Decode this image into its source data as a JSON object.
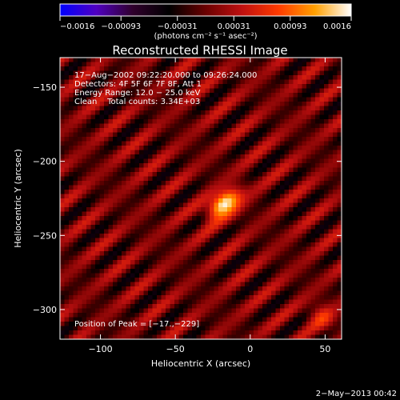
{
  "chart_data": {
    "type": "heatmap",
    "title": "Reconstructed RHESSI Image",
    "xlabel": "Heliocentric X (arcsec)",
    "ylabel": "Heliocentric Y (arcsec)",
    "xlim": [
      -127,
      61
    ],
    "ylim": [
      -320,
      -130
    ],
    "x_ticks": [
      -100,
      -50,
      0,
      50
    ],
    "x_tick_labels": [
      "−100",
      "−50",
      "0",
      "50"
    ],
    "y_ticks": [
      -150,
      -200,
      -250,
      -300
    ],
    "y_tick_labels": [
      "−150",
      "−200",
      "−250",
      "−300"
    ],
    "colorbar": {
      "range": [
        -0.0016,
        0.0016
      ],
      "ticks": [
        -0.0016,
        -0.00093,
        -0.00031,
        0.00031,
        0.00093,
        0.0016
      ],
      "tick_labels": [
        "−0.0016",
        "−0.00093",
        "−0.00031",
        "0.00031",
        "0.00093",
        "0.0016"
      ],
      "unit_label": "(photons cm⁻² s⁻¹ asec⁻²)",
      "colors": [
        "#0000ff",
        "#5000c0",
        "#30002c",
        "#000000",
        "#6a0000",
        "#c01010",
        "#ff3a00",
        "#ffa000",
        "#ffffff"
      ]
    },
    "info_lines": [
      "17−Aug−2002 09:22:20.000 to 09:26:24.000",
      "Detectors: 4F 5F 6F 7F 8F, Att 1",
      "Energy Range: 12.0 − 25.0 keV",
      "Clean    Total counts: 3.34E+03"
    ],
    "peak_label": "Position of Peak = [−17.,−229]",
    "peak": {
      "x": -17,
      "y": -229
    },
    "pattern": {
      "stripe_direction_deg": 40,
      "stripe_period_arcsec": 19,
      "stripe_amplitude": 0.00048,
      "source_peak": 0.00155,
      "source_sigma_major": 9,
      "source_sigma_minor": 5.5,
      "source_angle_deg": 40,
      "secondary_sources": [
        {
          "x": 48,
          "y": -305,
          "amp": 0.0006
        }
      ]
    },
    "date_stamp": "2−May−2013 00:42"
  }
}
